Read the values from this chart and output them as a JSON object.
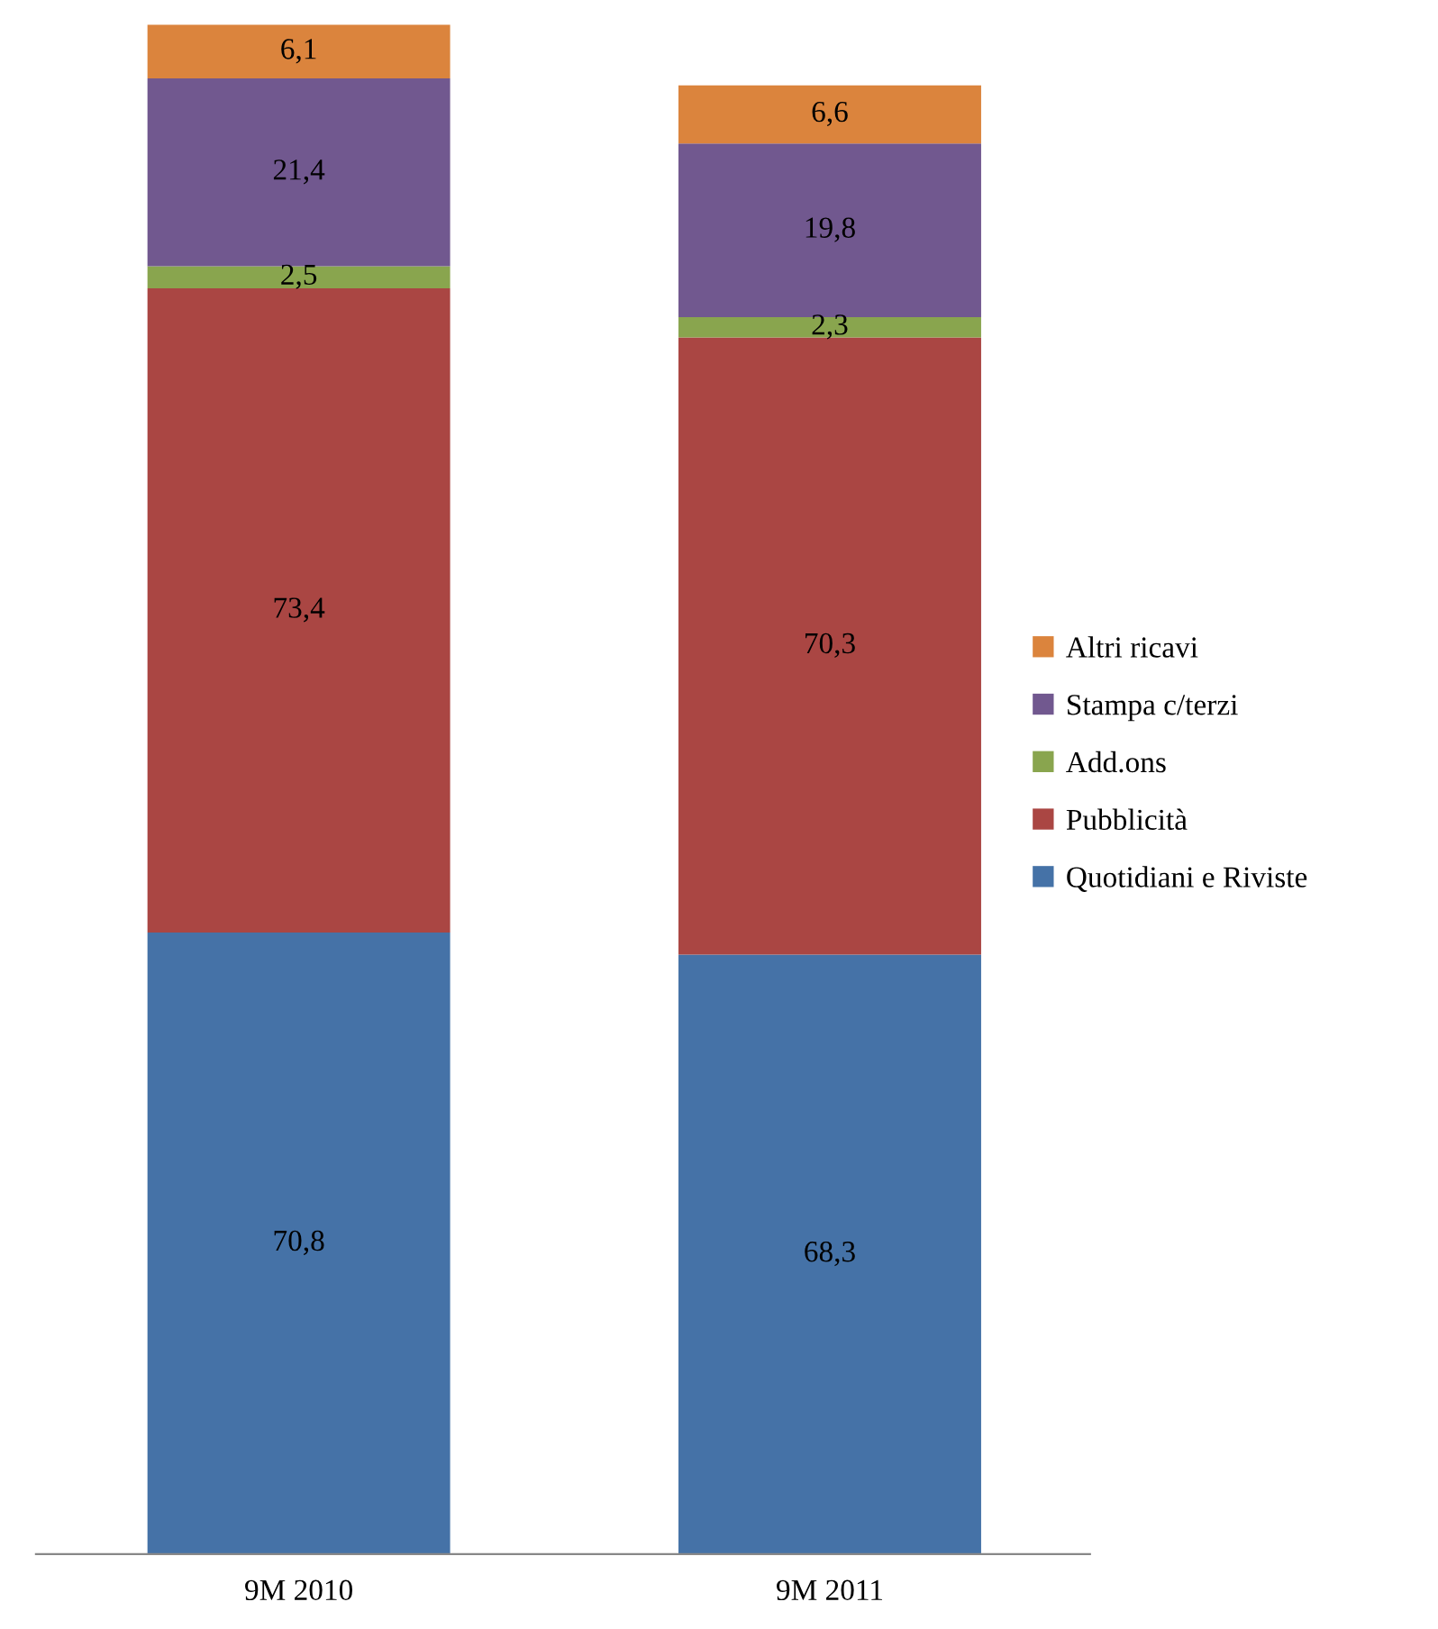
{
  "chart_data": {
    "type": "bar",
    "stacked": true,
    "legend": "right",
    "categories": [
      "9M 2010",
      "9M 2011"
    ],
    "series": [
      {
        "name": "Quotidiani e Riviste",
        "color": "#4572a7",
        "values": [
          70.8,
          68.3
        ],
        "value_labels": [
          "70,8",
          "68,3"
        ]
      },
      {
        "name": "Pubblicità",
        "color": "#aa4643",
        "values": [
          73.4,
          70.3
        ],
        "value_labels": [
          "73,4",
          "70,3"
        ]
      },
      {
        "name": "Add.ons",
        "color": "#89a54e",
        "values": [
          2.5,
          2.3
        ],
        "value_labels": [
          "2,5",
          "2,3"
        ]
      },
      {
        "name": "Stampa c/terzi",
        "color": "#71588f",
        "values": [
          21.4,
          19.8
        ],
        "value_labels": [
          "21,4",
          "19,8"
        ]
      },
      {
        "name": "Altri ricavi",
        "color": "#db843d",
        "values": [
          6.1,
          6.6
        ],
        "value_labels": [
          "6,1",
          "6,6"
        ]
      }
    ]
  }
}
